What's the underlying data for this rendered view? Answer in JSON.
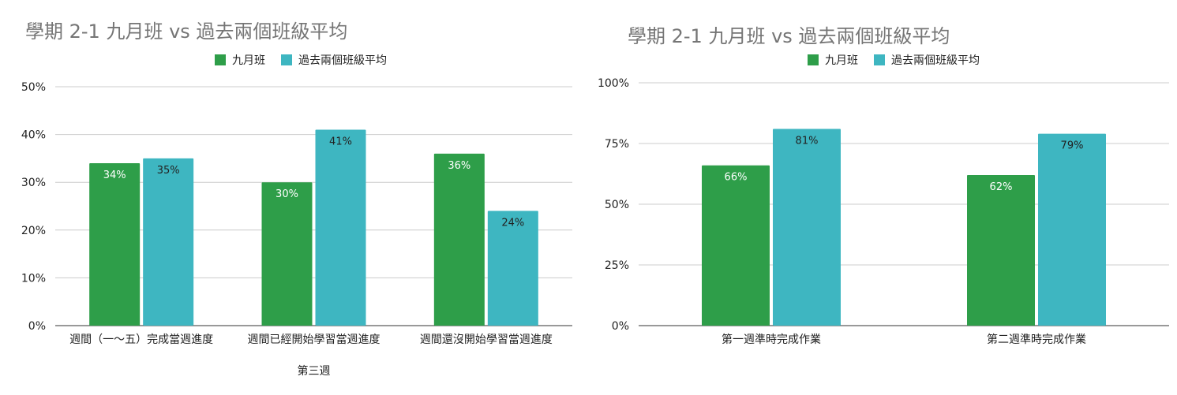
{
  "colors": {
    "series1": "#2e9e49",
    "series2": "#3eb6c1",
    "grid": "#cccccc",
    "axis": "#333333",
    "title": "#757575"
  },
  "chart_data": [
    {
      "type": "bar",
      "title": "學期 2-1 九月班 vs 過去兩個班級平均",
      "xlabel": "第三週",
      "ylabel": "",
      "categories": [
        "週間（一～五）完成當週進度",
        "週間已經開始學習當週進度",
        "週間還沒開始學習當週進度"
      ],
      "series": [
        {
          "name": "九月班",
          "values": [
            34,
            30,
            36
          ],
          "labels": [
            "34%",
            "30%",
            "36%"
          ]
        },
        {
          "name": "過去兩個班級平均",
          "values": [
            35,
            41,
            24
          ],
          "labels": [
            "35%",
            "41%",
            "24%"
          ]
        }
      ],
      "ylim": [
        0,
        50
      ],
      "yticks": [
        0,
        10,
        20,
        30,
        40,
        50
      ],
      "ytick_labels": [
        "0%",
        "10%",
        "20%",
        "30%",
        "40%",
        "50%"
      ],
      "grid": true,
      "legend": "top-center"
    },
    {
      "type": "bar",
      "title": "學期 2-1 九月班 vs 過去兩個班級平均",
      "xlabel": "",
      "ylabel": "",
      "categories": [
        "第一週準時完成作業",
        "第二週準時完成作業"
      ],
      "series": [
        {
          "name": "九月班",
          "values": [
            66,
            62
          ],
          "labels": [
            "66%",
            "62%"
          ]
        },
        {
          "name": "過去兩個班級平均",
          "values": [
            81,
            79
          ],
          "labels": [
            "81%",
            "79%"
          ]
        }
      ],
      "ylim": [
        0,
        100
      ],
      "yticks": [
        0,
        25,
        50,
        75,
        100
      ],
      "ytick_labels": [
        "0%",
        "25%",
        "50%",
        "75%",
        "100%"
      ],
      "grid": true,
      "legend": "top-center"
    }
  ]
}
